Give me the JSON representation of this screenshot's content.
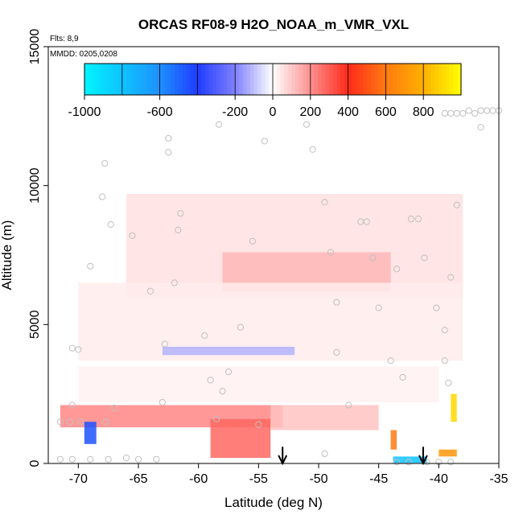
{
  "chart_data": {
    "type": "heatmap",
    "title": "ORCAS RF08-9 H2O_NOAA_m_VMR_VXL",
    "flights_label": "Flts: 8,9",
    "date_label": "MMDD: 0205,0208",
    "xlabel": "Latitude (deg N)",
    "ylabel": "Altitude (m)",
    "xlim": [
      -72.5,
      -35
    ],
    "ylim": [
      0,
      15000
    ],
    "x_ticks": [
      -70,
      -65,
      -60,
      -55,
      -50,
      -45,
      -40,
      -35
    ],
    "x_tick_labels": [
      "-70",
      "-65",
      "-60",
      "-55",
      "-50",
      "-45",
      "-40",
      "-35"
    ],
    "y_ticks": [
      0,
      5000,
      10000,
      15000
    ],
    "y_tick_labels": [
      "0",
      "5000",
      "10000",
      "15000"
    ],
    "colorbar": {
      "range": [
        -1000,
        1000
      ],
      "ticks": [
        -1000,
        -600,
        -200,
        0,
        200,
        400,
        600,
        800
      ],
      "tick_labels": [
        "-1000",
        "-600",
        "-200",
        "0",
        "200",
        "400",
        "600",
        "800"
      ],
      "stops": [
        {
          "v": -1000,
          "c": "#00f5ff"
        },
        {
          "v": -600,
          "c": "#1e90ff"
        },
        {
          "v": -400,
          "c": "#1f3cff"
        },
        {
          "v": -200,
          "c": "#8080ff"
        },
        {
          "v": 0,
          "c": "#ffffff"
        },
        {
          "v": 200,
          "c": "#ff9090"
        },
        {
          "v": 400,
          "c": "#ff2a1a"
        },
        {
          "v": 600,
          "c": "#ff7a10"
        },
        {
          "v": 800,
          "c": "#ffb000"
        },
        {
          "v": 1000,
          "c": "#ffff00"
        }
      ]
    },
    "field_patches": [
      {
        "lat": [
          -66,
          -38
        ],
        "alt": [
          6000,
          9700
        ],
        "value": 55
      },
      {
        "lat": [
          -58,
          -44
        ],
        "alt": [
          6200,
          7600
        ],
        "value": 130
      },
      {
        "lat": [
          -70,
          -38
        ],
        "alt": [
          3700,
          6500
        ],
        "value": 35
      },
      {
        "lat": [
          -63,
          -52
        ],
        "alt": [
          3900,
          4200
        ],
        "value": -120
      },
      {
        "lat": [
          -70,
          -40
        ],
        "alt": [
          2200,
          3500
        ],
        "value": 25
      },
      {
        "lat": [
          -71.5,
          -53
        ],
        "alt": [
          1300,
          2100
        ],
        "value": 220
      },
      {
        "lat": [
          -59,
          -54
        ],
        "alt": [
          200,
          1600
        ],
        "value": 280
      },
      {
        "lat": [
          -54,
          -45
        ],
        "alt": [
          1200,
          2100
        ],
        "value": 110
      },
      {
        "lat": [
          -69.5,
          -68.5
        ],
        "alt": [
          700,
          1500
        ],
        "value": -450
      },
      {
        "lat": [
          -44,
          -43.5
        ],
        "alt": [
          500,
          1200
        ],
        "value": 600
      },
      {
        "lat": [
          -43.8,
          -41
        ],
        "alt": [
          20,
          250
        ],
        "value": -800
      },
      {
        "lat": [
          -40,
          -38.5
        ],
        "alt": [
          250,
          500
        ],
        "value": 700
      },
      {
        "lat": [
          -39,
          -38.5
        ],
        "alt": [
          1500,
          2500
        ],
        "value": 900
      }
    ],
    "flight_points": [
      {
        "lat": -71.5,
        "alt": 150
      },
      {
        "lat": -70.5,
        "alt": 150
      },
      {
        "lat": -69,
        "alt": 150
      },
      {
        "lat": -67.5,
        "alt": 150
      },
      {
        "lat": -66,
        "alt": 200
      },
      {
        "lat": -63.5,
        "alt": 150
      },
      {
        "lat": -71.5,
        "alt": 1500
      },
      {
        "lat": -70.7,
        "alt": 1500
      },
      {
        "lat": -69.8,
        "alt": 1500
      },
      {
        "lat": -67.7,
        "alt": 1500
      },
      {
        "lat": -70.5,
        "alt": 2100
      },
      {
        "lat": -67,
        "alt": 2000
      },
      {
        "lat": -70.5,
        "alt": 4150
      },
      {
        "lat": -70,
        "alt": 4100
      },
      {
        "lat": -69,
        "alt": 7100
      },
      {
        "lat": -67.3,
        "alt": 8600
      },
      {
        "lat": -68,
        "alt": 9600
      },
      {
        "lat": -67.8,
        "alt": 10800
      },
      {
        "lat": -65.5,
        "alt": 8200
      },
      {
        "lat": -64,
        "alt": 6200
      },
      {
        "lat": -62.5,
        "alt": 11700
      },
      {
        "lat": -62.5,
        "alt": 11200
      },
      {
        "lat": -61.5,
        "alt": 9000
      },
      {
        "lat": -61.7,
        "alt": 8400
      },
      {
        "lat": -62,
        "alt": 6500
      },
      {
        "lat": -62.8,
        "alt": 4300
      },
      {
        "lat": -63,
        "alt": 2200
      },
      {
        "lat": -59.5,
        "alt": 4600
      },
      {
        "lat": -58.3,
        "alt": 12200
      },
      {
        "lat": -57.5,
        "alt": 3300
      },
      {
        "lat": -56.5,
        "alt": 4900
      },
      {
        "lat": -55.5,
        "alt": 8000
      },
      {
        "lat": -54.5,
        "alt": 11600
      },
      {
        "lat": -59,
        "alt": 3000
      },
      {
        "lat": -58,
        "alt": 2600
      },
      {
        "lat": -58.5,
        "alt": 1600
      },
      {
        "lat": -55,
        "alt": 1400
      },
      {
        "lat": -51,
        "alt": 12200
      },
      {
        "lat": -50.5,
        "alt": 11300
      },
      {
        "lat": -49.5,
        "alt": 9400
      },
      {
        "lat": -49,
        "alt": 7600
      },
      {
        "lat": -48.5,
        "alt": 5800
      },
      {
        "lat": -48.5,
        "alt": 4000
      },
      {
        "lat": -47.5,
        "alt": 2100
      },
      {
        "lat": -46.5,
        "alt": 8700
      },
      {
        "lat": -46,
        "alt": 8700
      },
      {
        "lat": -45.5,
        "alt": 7400
      },
      {
        "lat": -45,
        "alt": 5600
      },
      {
        "lat": -44,
        "alt": 3700
      },
      {
        "lat": -43,
        "alt": 3100
      },
      {
        "lat": -43.5,
        "alt": 7000
      },
      {
        "lat": -42.3,
        "alt": 8800
      },
      {
        "lat": -41.7,
        "alt": 8800
      },
      {
        "lat": -41.2,
        "alt": 7400
      },
      {
        "lat": -40.2,
        "alt": 5600
      },
      {
        "lat": -39.5,
        "alt": 3700
      },
      {
        "lat": -39.5,
        "alt": 4800
      },
      {
        "lat": -39,
        "alt": 6700
      },
      {
        "lat": -38.5,
        "alt": 9300
      },
      {
        "lat": -39.5,
        "alt": 12600
      },
      {
        "lat": -39,
        "alt": 12600
      },
      {
        "lat": -38.5,
        "alt": 12600
      },
      {
        "lat": -38,
        "alt": 12600
      },
      {
        "lat": -37.5,
        "alt": 12700
      },
      {
        "lat": -37,
        "alt": 12600
      },
      {
        "lat": -36.5,
        "alt": 12700
      },
      {
        "lat": -36,
        "alt": 12700
      },
      {
        "lat": -35.5,
        "alt": 12700
      },
      {
        "lat": -35,
        "alt": 12700
      },
      {
        "lat": -36.5,
        "alt": 12100
      },
      {
        "lat": -43.5,
        "alt": 50
      },
      {
        "lat": -42.5,
        "alt": 50
      },
      {
        "lat": -41,
        "alt": 50
      },
      {
        "lat": -40,
        "alt": 50
      },
      {
        "lat": -39,
        "alt": 50
      },
      {
        "lat": -49.5,
        "alt": 350
      },
      {
        "lat": -65,
        "alt": 150
      },
      {
        "lat": -39.2,
        "alt": 2900
      }
    ],
    "annotations": [
      {
        "type": "arrow",
        "lat": -53,
        "alt_from": 600,
        "alt_to": 0
      },
      {
        "type": "arrow",
        "lat": -41.3,
        "alt_from": 600,
        "alt_to": 0
      }
    ]
  }
}
